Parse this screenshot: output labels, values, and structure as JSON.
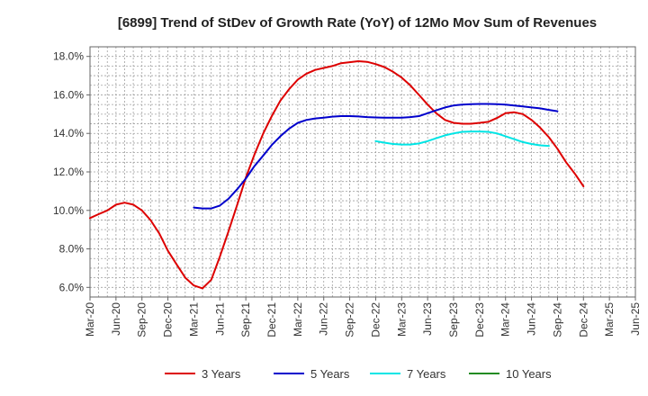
{
  "chart_data": {
    "type": "line",
    "title": "[6899]  Trend of StDev of Growth Rate (YoY) of 12Mo Mov Sum of Revenues",
    "xlabel": "",
    "ylabel": "",
    "ylim": [
      5.5,
      18.5
    ],
    "yticks": [
      6.0,
      8.0,
      10.0,
      12.0,
      14.0,
      16.0,
      18.0
    ],
    "ytick_labels": [
      "6.0%",
      "8.0%",
      "10.0%",
      "12.0%",
      "14.0%",
      "16.0%",
      "18.0%"
    ],
    "x_categories": [
      "Mar-20",
      "Jun-20",
      "Sep-20",
      "Dec-20",
      "Mar-21",
      "Jun-21",
      "Sep-21",
      "Dec-21",
      "Mar-22",
      "Jun-22",
      "Sep-22",
      "Dec-22",
      "Mar-23",
      "Jun-23",
      "Sep-23",
      "Dec-23",
      "Mar-24",
      "Jun-24",
      "Sep-24",
      "Dec-24",
      "Mar-25",
      "Jun-25"
    ],
    "grid": true,
    "legend_position": "bottom",
    "series": [
      {
        "name": "3 Years",
        "color": "#dd0000",
        "points": [
          [
            0,
            9.6
          ],
          [
            0.33,
            9.8
          ],
          [
            0.67,
            10.0
          ],
          [
            1,
            10.3
          ],
          [
            1.33,
            10.4
          ],
          [
            1.67,
            10.3
          ],
          [
            2,
            10.0
          ],
          [
            2.33,
            9.5
          ],
          [
            2.67,
            8.8
          ],
          [
            3,
            7.9
          ],
          [
            3.33,
            7.2
          ],
          [
            3.67,
            6.5
          ],
          [
            4,
            6.1
          ],
          [
            4.33,
            5.95
          ],
          [
            4.67,
            6.4
          ],
          [
            5,
            7.6
          ],
          [
            5.33,
            8.9
          ],
          [
            5.67,
            10.3
          ],
          [
            6,
            11.7
          ],
          [
            6.33,
            12.9
          ],
          [
            6.67,
            14.0
          ],
          [
            7,
            14.9
          ],
          [
            7.33,
            15.7
          ],
          [
            7.67,
            16.3
          ],
          [
            8,
            16.8
          ],
          [
            8.33,
            17.1
          ],
          [
            8.67,
            17.3
          ],
          [
            9,
            17.4
          ],
          [
            9.33,
            17.5
          ],
          [
            9.67,
            17.65
          ],
          [
            10,
            17.7
          ],
          [
            10.33,
            17.75
          ],
          [
            10.67,
            17.72
          ],
          [
            11,
            17.6
          ],
          [
            11.33,
            17.45
          ],
          [
            11.67,
            17.2
          ],
          [
            12,
            16.9
          ],
          [
            12.33,
            16.5
          ],
          [
            12.67,
            16.0
          ],
          [
            13,
            15.5
          ],
          [
            13.33,
            15.05
          ],
          [
            13.67,
            14.7
          ],
          [
            14,
            14.55
          ],
          [
            14.33,
            14.5
          ],
          [
            14.67,
            14.5
          ],
          [
            15,
            14.55
          ],
          [
            15.33,
            14.6
          ],
          [
            15.67,
            14.8
          ],
          [
            16,
            15.05
          ],
          [
            16.33,
            15.1
          ],
          [
            16.67,
            15.0
          ],
          [
            17,
            14.7
          ],
          [
            17.33,
            14.3
          ],
          [
            17.67,
            13.8
          ],
          [
            18,
            13.2
          ],
          [
            18.33,
            12.5
          ],
          [
            18.67,
            11.9
          ],
          [
            19,
            11.25
          ]
        ]
      },
      {
        "name": "5 Years",
        "color": "#0000cc",
        "points": [
          [
            4,
            10.15
          ],
          [
            4.33,
            10.1
          ],
          [
            4.67,
            10.1
          ],
          [
            5,
            10.25
          ],
          [
            5.33,
            10.6
          ],
          [
            5.67,
            11.1
          ],
          [
            6,
            11.65
          ],
          [
            6.33,
            12.3
          ],
          [
            6.67,
            12.85
          ],
          [
            7,
            13.4
          ],
          [
            7.33,
            13.85
          ],
          [
            7.67,
            14.25
          ],
          [
            8,
            14.55
          ],
          [
            8.33,
            14.7
          ],
          [
            8.67,
            14.78
          ],
          [
            9,
            14.82
          ],
          [
            9.33,
            14.87
          ],
          [
            9.67,
            14.9
          ],
          [
            10,
            14.9
          ],
          [
            10.33,
            14.88
          ],
          [
            10.67,
            14.85
          ],
          [
            11,
            14.83
          ],
          [
            11.33,
            14.82
          ],
          [
            11.67,
            14.82
          ],
          [
            12,
            14.82
          ],
          [
            12.33,
            14.85
          ],
          [
            12.67,
            14.9
          ],
          [
            13,
            15.05
          ],
          [
            13.33,
            15.2
          ],
          [
            13.67,
            15.35
          ],
          [
            14,
            15.45
          ],
          [
            14.33,
            15.5
          ],
          [
            14.67,
            15.52
          ],
          [
            15,
            15.53
          ],
          [
            15.33,
            15.53
          ],
          [
            15.67,
            15.52
          ],
          [
            16,
            15.5
          ],
          [
            16.33,
            15.45
          ],
          [
            16.67,
            15.4
          ],
          [
            17,
            15.35
          ],
          [
            17.33,
            15.3
          ],
          [
            17.67,
            15.22
          ],
          [
            18,
            15.15
          ]
        ]
      },
      {
        "name": "7 Years",
        "color": "#00e5e5",
        "points": [
          [
            11,
            13.6
          ],
          [
            11.33,
            13.52
          ],
          [
            11.67,
            13.45
          ],
          [
            12,
            13.42
          ],
          [
            12.33,
            13.42
          ],
          [
            12.67,
            13.48
          ],
          [
            13,
            13.6
          ],
          [
            13.33,
            13.75
          ],
          [
            13.67,
            13.9
          ],
          [
            14,
            14.0
          ],
          [
            14.33,
            14.08
          ],
          [
            14.67,
            14.1
          ],
          [
            15,
            14.1
          ],
          [
            15.33,
            14.08
          ],
          [
            15.67,
            14.0
          ],
          [
            16,
            13.85
          ],
          [
            16.33,
            13.7
          ],
          [
            16.67,
            13.55
          ],
          [
            17,
            13.45
          ],
          [
            17.33,
            13.38
          ],
          [
            17.67,
            13.35
          ]
        ]
      },
      {
        "name": "10 Years",
        "color": "#228b22",
        "points": []
      }
    ]
  }
}
